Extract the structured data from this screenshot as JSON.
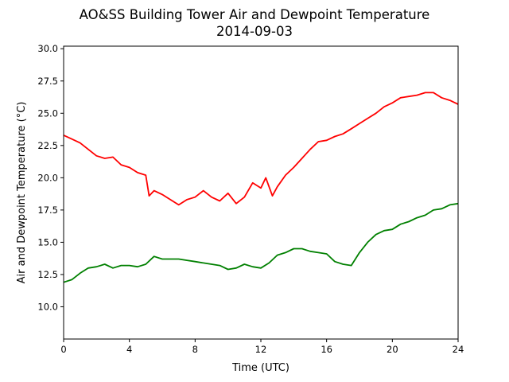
{
  "chart_data": {
    "type": "line",
    "title": "AO&SS Building Tower Air and Dewpoint Temperature",
    "subtitle": "2014-09-03",
    "xlabel": "Time (UTC)",
    "ylabel": "Air and Dewpoint Temperature (°C)",
    "xlim": [
      0,
      24
    ],
    "ylim": [
      7.5,
      30.2
    ],
    "xticks": [
      0,
      4,
      8,
      12,
      16,
      20,
      24
    ],
    "xtick_labels": [
      "0",
      "4",
      "8",
      "12",
      "16",
      "20",
      "24"
    ],
    "yticks": [
      10.0,
      12.5,
      15.0,
      17.5,
      20.0,
      22.5,
      25.0,
      27.5,
      30.0
    ],
    "ytick_labels": [
      "10.0",
      "12.5",
      "15.0",
      "17.5",
      "20.0",
      "22.5",
      "25.0",
      "27.5",
      "30.0"
    ],
    "grid": false,
    "series": [
      {
        "color": "#ff0000",
        "x": [
          0,
          0.5,
          1.0,
          1.5,
          2.0,
          2.5,
          3.0,
          3.5,
          4.0,
          4.5,
          5.0,
          5.2,
          5.5,
          6.0,
          6.5,
          7.0,
          7.5,
          8.0,
          8.5,
          9.0,
          9.5,
          10.0,
          10.5,
          11.0,
          11.5,
          12.0,
          12.3,
          12.7,
          13.0,
          13.5,
          14.0,
          14.5,
          15.0,
          15.5,
          16.0,
          16.5,
          17.0,
          17.5,
          18.0,
          18.5,
          19.0,
          19.5,
          20.0,
          20.5,
          21.0,
          21.5,
          22.0,
          22.5,
          23.0,
          23.5,
          24.0
        ],
        "y": [
          23.3,
          23.0,
          22.7,
          22.2,
          21.7,
          21.5,
          21.6,
          21.0,
          20.8,
          20.4,
          20.2,
          18.6,
          19.0,
          18.7,
          18.3,
          17.9,
          18.3,
          18.5,
          19.0,
          18.5,
          18.2,
          18.8,
          18.0,
          18.5,
          19.6,
          19.2,
          20.0,
          18.6,
          19.3,
          20.2,
          20.8,
          21.5,
          22.2,
          22.8,
          22.9,
          23.2,
          23.4,
          23.8,
          24.2,
          24.6,
          25.0,
          25.5,
          25.8,
          26.2,
          26.3,
          26.4,
          26.6,
          26.6,
          26.2,
          26.0,
          25.7
        ]
      },
      {
        "color": "#008000",
        "x": [
          0,
          0.5,
          1.0,
          1.5,
          2.0,
          2.5,
          3.0,
          3.5,
          4.0,
          4.5,
          5.0,
          5.5,
          6.0,
          6.5,
          7.0,
          7.5,
          8.0,
          8.5,
          9.0,
          9.5,
          10.0,
          10.5,
          11.0,
          11.5,
          12.0,
          12.5,
          13.0,
          13.5,
          14.0,
          14.5,
          15.0,
          15.5,
          16.0,
          16.5,
          17.0,
          17.5,
          18.0,
          18.5,
          19.0,
          19.5,
          20.0,
          20.5,
          21.0,
          21.5,
          22.0,
          22.5,
          23.0,
          23.5,
          24.0
        ],
        "y": [
          11.9,
          12.1,
          12.6,
          13.0,
          13.1,
          13.3,
          13.0,
          13.2,
          13.2,
          13.1,
          13.3,
          13.9,
          13.7,
          13.7,
          13.7,
          13.6,
          13.5,
          13.4,
          13.3,
          13.2,
          12.9,
          13.0,
          13.3,
          13.1,
          13.0,
          13.4,
          14.0,
          14.2,
          14.5,
          14.5,
          14.3,
          14.2,
          14.1,
          13.5,
          13.3,
          13.2,
          14.2,
          15.0,
          15.6,
          15.9,
          16.0,
          16.4,
          16.6,
          16.9,
          17.1,
          17.5,
          17.6,
          17.9,
          18.0
        ]
      }
    ]
  }
}
